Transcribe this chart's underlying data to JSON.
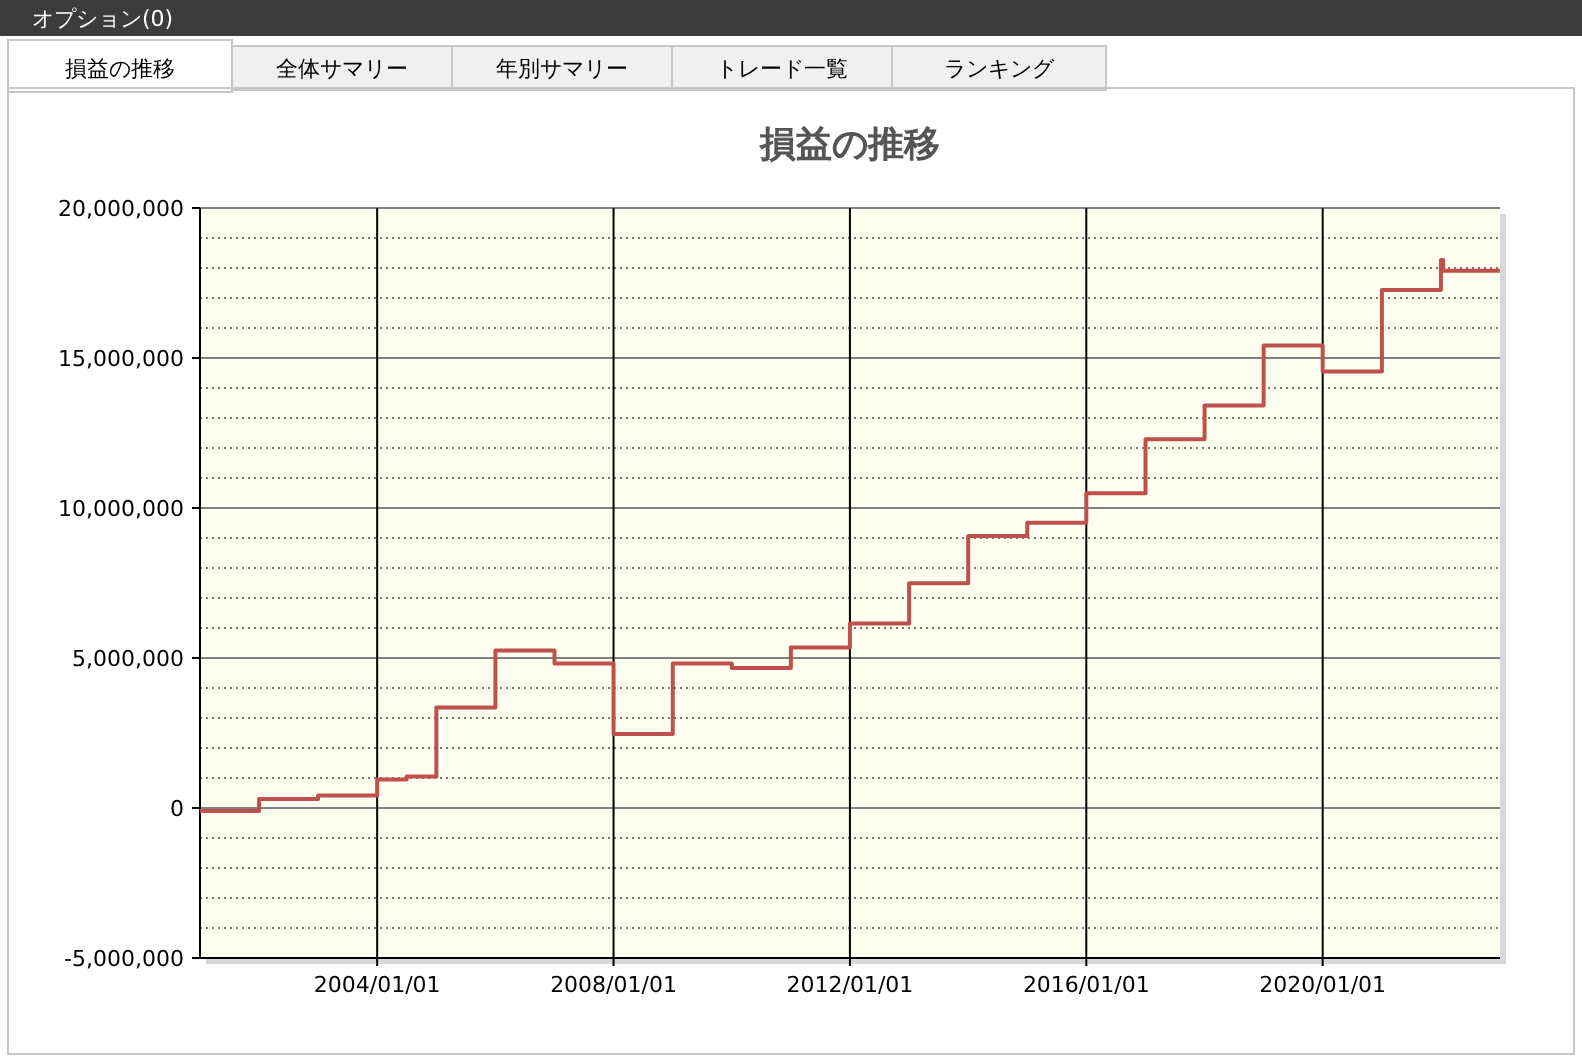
{
  "chart_data": {
    "type": "step",
    "title": "損益の推移",
    "annotations": [
      "オプション(0)",
      "損益の推移",
      "全体サマリー",
      "年別サマリー",
      "トレード一覧",
      "ランキング"
    ],
    "x": [
      "2001-01-01",
      "2002-01-01",
      "2003-01-01",
      "2004-01-01",
      "2004-07-01",
      "2005-01-01",
      "2006-01-01",
      "2007-01-01",
      "2008-01-01",
      "2009-01-01",
      "2010-01-01",
      "2011-01-01",
      "2012-01-01",
      "2013-01-01",
      "2014-01-01",
      "2015-01-01",
      "2016-01-01",
      "2017-01-01",
      "2018-01-01",
      "2019-01-01",
      "2020-01-01",
      "2021-01-01",
      "2022-01-01",
      "2022-01-15",
      "2022-12-31"
    ],
    "series": [
      {
        "color": "#c0504d",
        "values": [
          -100000,
          300000,
          420000,
          950000,
          1050000,
          3350000,
          5250000,
          4820000,
          2470000,
          4820000,
          4670000,
          5350000,
          6150000,
          7490000,
          9070000,
          9510000,
          10490000,
          12290000,
          13420000,
          15420000,
          14550000,
          17270000,
          18270000,
          17910000,
          17910000
        ]
      }
    ],
    "xlim": [
      "2001-01-01",
      "2023-01-01"
    ],
    "xticks": [
      {
        "value": "2004-01-01",
        "label": "2004/01/01"
      },
      {
        "value": "2008-01-01",
        "label": "2008/01/01"
      },
      {
        "value": "2012-01-01",
        "label": "2012/01/01"
      },
      {
        "value": "2016-01-01",
        "label": "2016/01/01"
      },
      {
        "value": "2020-01-01",
        "label": "2020/01/01"
      }
    ],
    "ylim": [
      -5000000,
      20000000
    ],
    "yticks": [
      {
        "value": -5000000,
        "label": "-5,000,000"
      },
      {
        "value": -4000000,
        "label": null
      },
      {
        "value": -3000000,
        "label": null
      },
      {
        "value": -2000000,
        "label": null
      },
      {
        "value": -1000000,
        "label": null
      },
      0,
      {
        "value": 1000000,
        "label": null
      },
      {
        "value": 2000000,
        "label": null
      },
      {
        "value": 3000000,
        "label": null
      },
      {
        "value": 4000000,
        "label": null
      },
      {
        "value": 5000000,
        "label": "5,000,000"
      },
      {
        "value": 6000000,
        "label": null
      },
      {
        "value": 7000000,
        "label": null
      },
      {
        "value": 8000000,
        "label": null
      },
      {
        "value": 9000000,
        "label": null
      },
      {
        "value": 10000000,
        "label": "10,000,000"
      },
      {
        "value": 11000000,
        "label": null
      },
      {
        "value": 12000000,
        "label": null
      },
      {
        "value": 13000000,
        "label": null
      },
      {
        "value": 14000000,
        "label": null
      },
      {
        "value": 15000000,
        "label": "15,000,000"
      },
      {
        "value": 16000000,
        "label": null
      },
      {
        "value": 17000000,
        "label": null
      },
      {
        "value": 18000000,
        "label": null
      },
      {
        "value": 19000000,
        "label": null
      },
      {
        "value": 20000000,
        "label": "20,000,000"
      }
    ],
    "grid": true,
    "marker": "none",
    "line_style": "solid"
  }
}
